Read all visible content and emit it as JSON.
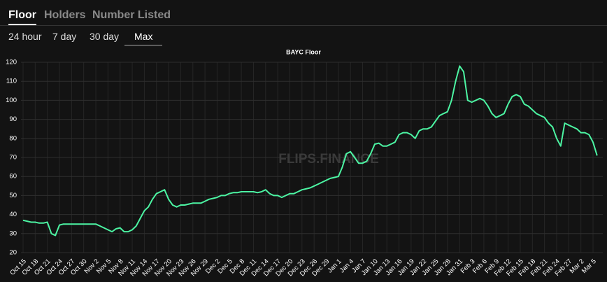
{
  "tabs": [
    "Floor",
    "Holders",
    "Number Listed"
  ],
  "ranges": [
    "24 hour",
    "7 day",
    "30 day",
    "Max"
  ],
  "watermark": "FLIPS.FINANCE",
  "chart_data": {
    "type": "line",
    "title": "BAYC Floor",
    "color": "#4cf5a3",
    "grid": true,
    "ylim": [
      20,
      120
    ],
    "yticks": [
      20,
      30,
      40,
      50,
      60,
      70,
      80,
      90,
      100,
      110,
      120
    ],
    "categories": [
      "Oct 15",
      null,
      null,
      "Oct 18",
      null,
      null,
      "Oct 21",
      null,
      null,
      "Oct 24",
      null,
      null,
      "Oct 27",
      null,
      null,
      "Oct 30",
      null,
      null,
      "Nov 2",
      null,
      null,
      "Nov 5",
      null,
      null,
      "Nov 8",
      null,
      null,
      "Nov 11",
      null,
      null,
      "Nov 14",
      null,
      null,
      "Nov 17",
      null,
      null,
      "Nov 20",
      null,
      null,
      "Nov 23",
      null,
      null,
      "Nov 26",
      null,
      null,
      "Nov 29",
      null,
      null,
      "Dec 2",
      null,
      null,
      "Dec 5",
      null,
      null,
      "Dec 8",
      null,
      null,
      "Dec 11",
      null,
      null,
      "Dec 14",
      null,
      null,
      "Dec 17",
      null,
      null,
      "Dec 20",
      null,
      null,
      "Dec 23",
      null,
      null,
      "Dec 26",
      null,
      null,
      "Dec 29",
      null,
      null,
      "Jan 1",
      null,
      null,
      "Jan 4",
      null,
      null,
      "Jan 7",
      null,
      null,
      "Jan 10",
      null,
      null,
      "Jan 13",
      null,
      null,
      "Jan 16",
      null,
      null,
      "Jan 19",
      null,
      null,
      "Jan 22",
      null,
      null,
      "Jan 25",
      null,
      null,
      "Jan 28",
      null,
      null,
      "Jan 31",
      null,
      null,
      "Feb 3",
      null,
      null,
      "Feb 6",
      null,
      null,
      "Feb 9",
      null,
      null,
      "Feb 12",
      null,
      null,
      "Feb 15",
      null,
      null,
      "Feb 18",
      null,
      null,
      "Feb 21",
      null,
      null,
      "Feb 24",
      null,
      null,
      "Feb 27",
      null,
      null,
      "Mar 2",
      null,
      null,
      "Mar 5",
      null
    ],
    "values": [
      37,
      36.5,
      36,
      36,
      35.5,
      35.5,
      36,
      30,
      29,
      34.5,
      35,
      35,
      35,
      35,
      35,
      35,
      35,
      35,
      35,
      34,
      33,
      32,
      31,
      32.5,
      33,
      31,
      31,
      32,
      34,
      38,
      42,
      44,
      48,
      51,
      52,
      53,
      48,
      45,
      44,
      45,
      45,
      45.5,
      46,
      46,
      46,
      47,
      48,
      48.5,
      49,
      50,
      50,
      51,
      51.5,
      51.5,
      52,
      52,
      52,
      52,
      51.5,
      52,
      53,
      51,
      50,
      50,
      49,
      50,
      51,
      51,
      52,
      53,
      53.5,
      54,
      55,
      56,
      57,
      58,
      59,
      59.5,
      60,
      65,
      72,
      73,
      70,
      67,
      67,
      68,
      72,
      77,
      77.5,
      76,
      76,
      77,
      78,
      82,
      83,
      83,
      82,
      80,
      84,
      85,
      85,
      86,
      89,
      92,
      93,
      94,
      100,
      110,
      118,
      115,
      100,
      99,
      100,
      101,
      100,
      97,
      93,
      91,
      92,
      93,
      98,
      102,
      103,
      102,
      98,
      97,
      95,
      93,
      92,
      91,
      88,
      86,
      80,
      76,
      88,
      87,
      86,
      85,
      83,
      83,
      82,
      78,
      71
    ]
  }
}
